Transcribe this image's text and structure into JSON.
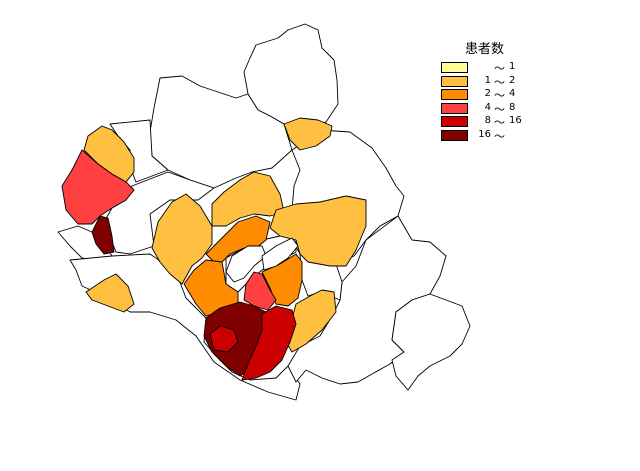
{
  "legend": {
    "title": "患者数",
    "rows": [
      {
        "low": "",
        "sep": "～",
        "high": "1",
        "color": "#ffff99"
      },
      {
        "low": "1",
        "sep": "～",
        "high": "2",
        "color": "#ffbf40"
      },
      {
        "low": "2",
        "sep": "～",
        "high": "4",
        "color": "#ff8c00"
      },
      {
        "low": "4",
        "sep": "～",
        "high": "8",
        "color": "#ff4040"
      },
      {
        "low": "8",
        "sep": "～",
        "high": "16",
        "color": "#cc0000"
      },
      {
        "low": "16",
        "sep": "～",
        "high": "",
        "color": "#800000"
      }
    ]
  },
  "map_colors": {
    "none": "#ffffff",
    "c1": "#ffbf40",
    "c2": "#ff8c00",
    "c3": "#ff4040",
    "c4": "#cc0000",
    "c5": "#800000"
  }
}
